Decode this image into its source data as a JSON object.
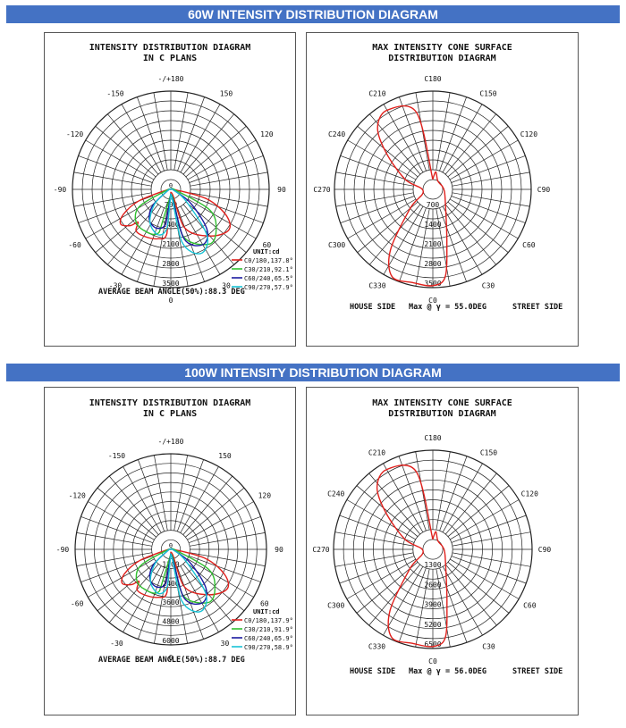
{
  "sections": [
    {
      "banner": "60W INTENSITY DISTRIBUTION DIAGRAM",
      "left": {
        "title_line1": "INTENSITY DISTRIBUTION DIAGRAM",
        "title_line2": "IN C PLANS",
        "angle_labels": [
          "-/+180",
          "150",
          "120",
          "90",
          "60",
          "30",
          "0",
          "-30",
          "-60",
          "-90",
          "-120",
          "-150"
        ],
        "radial_labels": [
          "700",
          "1400",
          "2100",
          "2800",
          "3500"
        ],
        "unit": "UNIT:cd",
        "legend": [
          {
            "text": "C0/180,137.8°",
            "color": "#e0201c"
          },
          {
            "text": "C30/210,92.1°",
            "color": "#2fbf2f"
          },
          {
            "text": "C60/240,65.5°",
            "color": "#1a1aa0"
          },
          {
            "text": "C90/270,57.9°",
            "color": "#17c3d6"
          }
        ],
        "footer": "AVERAGE BEAM ANGLE(50%):88.3 DEG"
      },
      "right": {
        "title_line1": "MAX INTENSITY CONE SURFACE",
        "title_line2": "DISTRIBUTION DIAGRAM",
        "angle_labels": [
          "C180",
          "C150",
          "C120",
          "C90",
          "C60",
          "C30",
          "C0",
          "C330",
          "C300",
          "C270",
          "C240",
          "C210"
        ],
        "radial_labels": [
          "700",
          "1400",
          "2100",
          "2800",
          "3500"
        ],
        "footer_left": "HOUSE SIDE",
        "footer_mid": "Max @ γ = 55.0DEG",
        "footer_right": "STREET SIDE",
        "curve_color": "#e0201c"
      }
    },
    {
      "banner": "100W INTENSITY DISTRIBUTION DIAGRAM",
      "left": {
        "title_line1": "INTENSITY DISTRIBUTION DIAGRAM",
        "title_line2": "IN C PLANS",
        "angle_labels": [
          "-/+180",
          "150",
          "120",
          "90",
          "60",
          "30",
          "0",
          "-30",
          "-60",
          "-90",
          "-120",
          "-150"
        ],
        "radial_labels": [
          "1200",
          "2400",
          "3600",
          "4800",
          "6000"
        ],
        "unit": "UNIT:cd",
        "legend": [
          {
            "text": "C0/180,137.9°",
            "color": "#e0201c"
          },
          {
            "text": "C30/210,91.9°",
            "color": "#2fbf2f"
          },
          {
            "text": "C60/240,65.9°",
            "color": "#1a1aa0"
          },
          {
            "text": "C90/270,58.9°",
            "color": "#17c3d6"
          }
        ],
        "footer": "AVERAGE BEAM ANGLE(50%):88.7 DEG"
      },
      "right": {
        "title_line1": "MAX INTENSITY CONE SURFACE",
        "title_line2": "DISTRIBUTION DIAGRAM",
        "angle_labels": [
          "C180",
          "C150",
          "C120",
          "C90",
          "C60",
          "C30",
          "C0",
          "C330",
          "C300",
          "C270",
          "C240",
          "C210"
        ],
        "radial_labels": [
          "1300",
          "2600",
          "3900",
          "5200",
          "6500"
        ],
        "footer_left": "HOUSE SIDE",
        "footer_mid": "Max @ γ = 56.0DEG",
        "footer_right": "STREET SIDE",
        "curve_color": "#e0201c"
      }
    }
  ]
}
